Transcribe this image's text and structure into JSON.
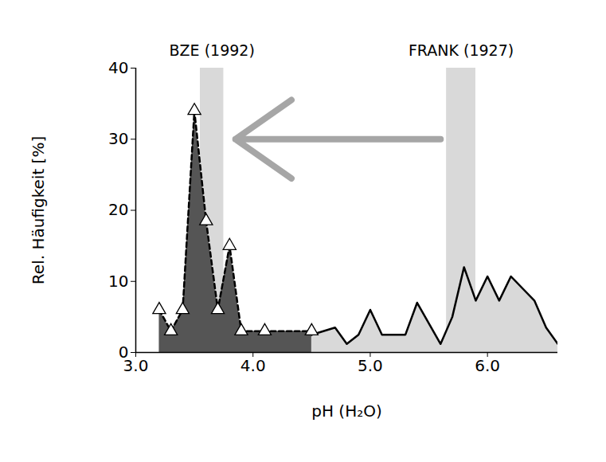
{
  "chart_data": {
    "type": "area",
    "x_label": "pH (H₂O)",
    "y_label": "Rel. Häufigkeit [%]",
    "xlim": [
      3.0,
      6.6
    ],
    "ylim": [
      0,
      40
    ],
    "xticks": [
      {
        "value": 3.0,
        "label": "3.0"
      },
      {
        "value": 4.0,
        "label": "4.0"
      },
      {
        "value": 5.0,
        "label": "5.0"
      },
      {
        "value": 6.0,
        "label": "6.0"
      }
    ],
    "yticks": [
      0,
      10,
      20,
      30,
      40
    ],
    "series": [
      {
        "name": "FRANK (1927)",
        "color": "#d9d9d9",
        "line_style": "solid",
        "band": [
          5.65,
          5.9
        ],
        "x": [
          4.0,
          4.2,
          4.4,
          4.5,
          4.7,
          4.8,
          4.9,
          5.0,
          5.1,
          5.3,
          5.4,
          5.6,
          5.7,
          5.8,
          5.9,
          6.0,
          6.1,
          6.2,
          6.4,
          6.5,
          6.6
        ],
        "values": [
          2.5,
          1.2,
          1.2,
          2.5,
          3.5,
          1.2,
          2.5,
          6,
          2.5,
          2.5,
          7,
          1.2,
          5,
          12,
          7.3,
          10.7,
          7.3,
          10.7,
          7.3,
          3.5,
          1.2
        ]
      },
      {
        "name": "BZE (1992)",
        "color": "#555555",
        "line_style": "dashed",
        "marker": "triangle",
        "band": [
          3.55,
          3.75
        ],
        "x": [
          3.2,
          3.3,
          3.4,
          3.5,
          3.6,
          3.7,
          3.8,
          3.9,
          4.1,
          4.5
        ],
        "values": [
          6,
          3,
          6,
          34,
          18.5,
          6,
          15,
          3,
          3,
          3
        ]
      }
    ],
    "arrow": {
      "x1": 5.6,
      "x2": 3.85,
      "y": 30
    }
  }
}
